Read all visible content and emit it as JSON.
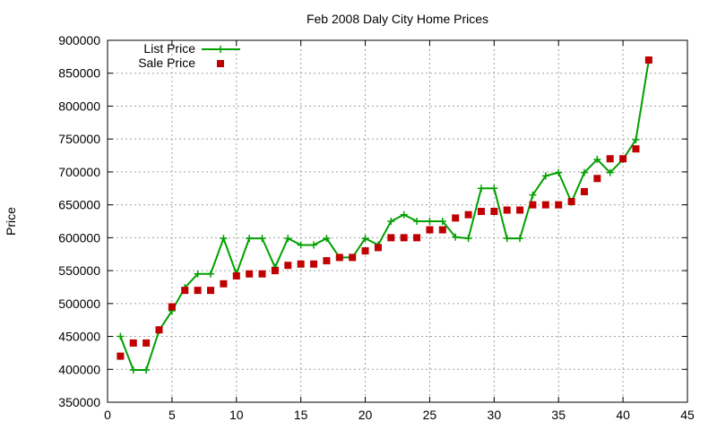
{
  "chart_data": {
    "type": "line",
    "title": "Feb 2008 Daly City Home Prices",
    "xlabel": "",
    "ylabel": "Price",
    "xlim": [
      0,
      45
    ],
    "ylim": [
      350000,
      900000
    ],
    "x_ticks": [
      "0",
      "5",
      "10",
      "15",
      "20",
      "25",
      "30",
      "35",
      "40",
      "45"
    ],
    "y_ticks": [
      "350000",
      "400000",
      "450000",
      "500000",
      "550000",
      "600000",
      "650000",
      "700000",
      "750000",
      "800000",
      "850000",
      "900000"
    ],
    "grid": true,
    "legend_position": "top-left",
    "series": [
      {
        "name": "List Price",
        "style": "linespoints",
        "marker": "plus",
        "color": "#00a000",
        "x": [
          1,
          2,
          3,
          4,
          5,
          6,
          7,
          8,
          9,
          10,
          11,
          12,
          13,
          14,
          15,
          16,
          17,
          18,
          19,
          20,
          21,
          22,
          23,
          24,
          25,
          26,
          27,
          28,
          29,
          30,
          31,
          32,
          33,
          34,
          35,
          36,
          37,
          38,
          39,
          40,
          41,
          42
        ],
        "values": [
          450000,
          399000,
          399000,
          459000,
          489000,
          524000,
          545000,
          545000,
          599000,
          545000,
          599000,
          599000,
          555000,
          599000,
          589000,
          589000,
          599000,
          570000,
          570000,
          599000,
          589000,
          625000,
          635000,
          625000,
          625000,
          625000,
          601000,
          599000,
          675000,
          675000,
          599000,
          599000,
          665000,
          694000,
          699000,
          654000,
          699000,
          719000,
          699000,
          719000,
          749000,
          870000
        ]
      },
      {
        "name": "Sale Price",
        "style": "points",
        "marker": "square",
        "color": "#c00000",
        "x": [
          1,
          2,
          3,
          4,
          5,
          6,
          7,
          8,
          9,
          10,
          11,
          12,
          13,
          14,
          15,
          16,
          17,
          18,
          19,
          20,
          21,
          22,
          23,
          24,
          25,
          26,
          27,
          28,
          29,
          30,
          31,
          32,
          33,
          34,
          35,
          36,
          37,
          38,
          39,
          40,
          41,
          42
        ],
        "values": [
          420000,
          440000,
          440000,
          460000,
          495000,
          520000,
          520000,
          520000,
          530000,
          542000,
          545000,
          545000,
          550000,
          558000,
          560000,
          560000,
          565000,
          570000,
          570000,
          580000,
          585000,
          600000,
          600000,
          600000,
          612000,
          612000,
          630000,
          635000,
          640000,
          640000,
          642000,
          642000,
          650000,
          650000,
          650000,
          655000,
          670000,
          690000,
          720000,
          720000,
          735000,
          870000
        ]
      }
    ]
  }
}
